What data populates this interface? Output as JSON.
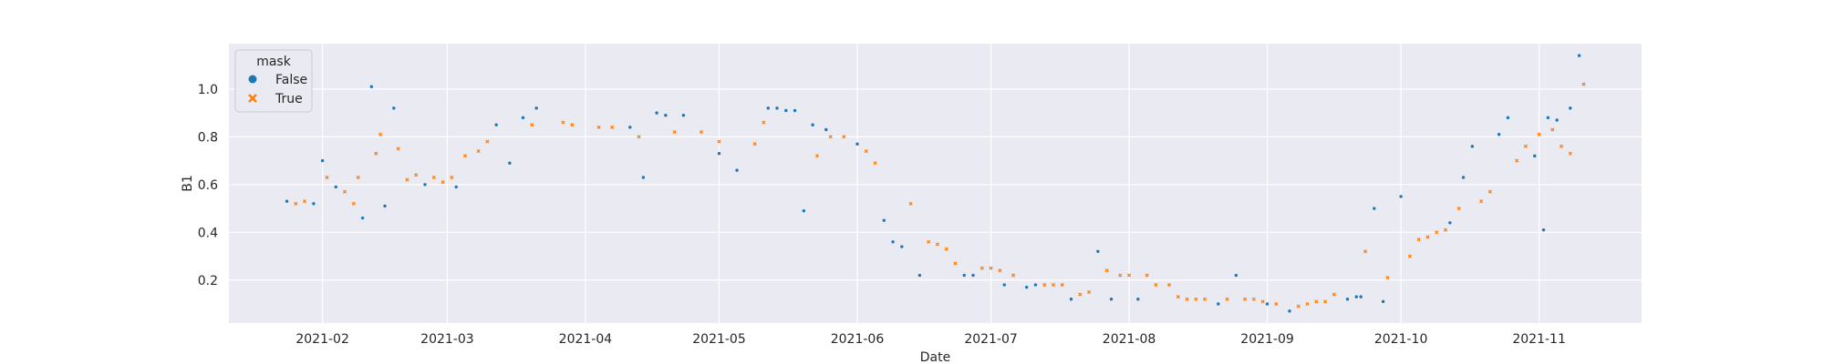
{
  "chart_data": {
    "type": "scatter",
    "title": "",
    "xlabel": "Date",
    "ylabel": "B1",
    "x_axis_type": "date",
    "xlim": [
      "2021-01-11",
      "2021-11-24"
    ],
    "ylim": [
      0.02,
      1.19
    ],
    "x_ticks": [
      "2021-02-01",
      "2021-03-01",
      "2021-04-01",
      "2021-05-01",
      "2021-06-01",
      "2021-07-01",
      "2021-08-01",
      "2021-09-01",
      "2021-10-01",
      "2021-11-01"
    ],
    "x_tick_labels": [
      "2021-02",
      "2021-03",
      "2021-04",
      "2021-05",
      "2021-06",
      "2021-07",
      "2021-08",
      "2021-09",
      "2021-10",
      "2021-11"
    ],
    "y_ticks": [
      0.2,
      0.4,
      0.6,
      0.8,
      1.0
    ],
    "y_tick_labels": [
      "0.2",
      "0.4",
      "0.6",
      "0.8",
      "1.0"
    ],
    "grid": true,
    "background": "#eaeaf2",
    "legend": {
      "title": "mask",
      "placement": "top-left",
      "entries": [
        {
          "label": "False",
          "marker": "circle",
          "color": "#1f77b4"
        },
        {
          "label": "True",
          "marker": "x",
          "color": "#ff7f0e"
        }
      ]
    },
    "series": [
      {
        "name": "False",
        "color": "#1f77b4",
        "marker": "circle",
        "x": [
          "2021-01-24",
          "2021-01-30",
          "2021-02-01",
          "2021-02-04",
          "2021-02-10",
          "2021-02-12",
          "2021-02-15",
          "2021-02-17",
          "2021-02-24",
          "2021-03-03",
          "2021-03-12",
          "2021-03-15",
          "2021-03-18",
          "2021-03-21",
          "2021-04-11",
          "2021-04-14",
          "2021-04-17",
          "2021-04-19",
          "2021-04-23",
          "2021-05-01",
          "2021-05-05",
          "2021-05-12",
          "2021-05-14",
          "2021-05-16",
          "2021-05-18",
          "2021-05-20",
          "2021-05-22",
          "2021-05-25",
          "2021-06-01",
          "2021-06-07",
          "2021-06-09",
          "2021-06-11",
          "2021-06-15",
          "2021-06-25",
          "2021-06-27",
          "2021-07-04",
          "2021-07-09",
          "2021-07-11",
          "2021-07-19",
          "2021-07-25",
          "2021-07-28",
          "2021-08-03",
          "2021-08-21",
          "2021-08-25",
          "2021-09-01",
          "2021-09-06",
          "2021-09-19",
          "2021-09-21",
          "2021-09-22",
          "2021-09-25",
          "2021-09-27",
          "2021-10-01",
          "2021-10-12",
          "2021-10-15",
          "2021-10-17",
          "2021-10-23",
          "2021-10-25",
          "2021-10-31",
          "2021-11-02",
          "2021-11-03",
          "2021-11-05",
          "2021-11-08",
          "2021-11-10"
        ],
        "y": [
          0.53,
          0.52,
          0.7,
          0.59,
          0.46,
          1.01,
          0.51,
          0.92,
          0.6,
          0.59,
          0.85,
          0.69,
          0.88,
          0.92,
          0.84,
          0.63,
          0.9,
          0.89,
          0.89,
          0.73,
          0.66,
          0.92,
          0.92,
          0.91,
          0.91,
          0.49,
          0.85,
          0.83,
          0.77,
          0.45,
          0.36,
          0.34,
          0.22,
          0.22,
          0.22,
          0.18,
          0.17,
          0.18,
          0.12,
          0.32,
          0.12,
          0.12,
          0.1,
          0.22,
          0.1,
          0.07,
          0.12,
          0.13,
          0.13,
          0.5,
          0.11,
          0.55,
          0.44,
          0.63,
          0.76,
          0.81,
          0.88,
          0.72,
          0.41,
          0.88,
          0.87,
          0.92,
          1.14
        ]
      },
      {
        "name": "True",
        "color": "#ff7f0e",
        "marker": "x",
        "x": [
          "2021-01-26",
          "2021-01-28",
          "2021-02-02",
          "2021-02-06",
          "2021-02-08",
          "2021-02-09",
          "2021-02-13",
          "2021-02-14",
          "2021-02-18",
          "2021-02-20",
          "2021-02-22",
          "2021-02-26",
          "2021-02-28",
          "2021-03-02",
          "2021-03-05",
          "2021-03-08",
          "2021-03-10",
          "2021-03-20",
          "2021-03-27",
          "2021-03-29",
          "2021-04-04",
          "2021-04-07",
          "2021-04-13",
          "2021-04-21",
          "2021-04-27",
          "2021-05-01",
          "2021-05-09",
          "2021-05-11",
          "2021-05-23",
          "2021-05-26",
          "2021-05-29",
          "2021-06-03",
          "2021-06-05",
          "2021-06-13",
          "2021-06-17",
          "2021-06-19",
          "2021-06-21",
          "2021-06-23",
          "2021-06-29",
          "2021-07-01",
          "2021-07-03",
          "2021-07-06",
          "2021-07-13",
          "2021-07-15",
          "2021-07-17",
          "2021-07-21",
          "2021-07-23",
          "2021-07-27",
          "2021-07-30",
          "2021-08-01",
          "2021-08-05",
          "2021-08-07",
          "2021-08-10",
          "2021-08-12",
          "2021-08-14",
          "2021-08-16",
          "2021-08-18",
          "2021-08-23",
          "2021-08-27",
          "2021-08-29",
          "2021-08-31",
          "2021-09-03",
          "2021-09-08",
          "2021-09-10",
          "2021-09-12",
          "2021-09-14",
          "2021-09-16",
          "2021-09-23",
          "2021-09-28",
          "2021-10-03",
          "2021-10-05",
          "2021-10-07",
          "2021-10-09",
          "2021-10-11",
          "2021-10-14",
          "2021-10-19",
          "2021-10-21",
          "2021-10-27",
          "2021-10-29",
          "2021-11-01",
          "2021-11-04",
          "2021-11-06",
          "2021-11-08",
          "2021-11-11"
        ],
        "y": [
          0.52,
          0.53,
          0.63,
          0.57,
          0.52,
          0.63,
          0.73,
          0.81,
          0.75,
          0.62,
          0.64,
          0.63,
          0.61,
          0.63,
          0.72,
          0.74,
          0.78,
          0.85,
          0.86,
          0.85,
          0.84,
          0.84,
          0.8,
          0.82,
          0.82,
          0.78,
          0.77,
          0.86,
          0.72,
          0.8,
          0.8,
          0.74,
          0.69,
          0.52,
          0.36,
          0.35,
          0.33,
          0.27,
          0.25,
          0.25,
          0.24,
          0.22,
          0.18,
          0.18,
          0.18,
          0.14,
          0.15,
          0.24,
          0.22,
          0.22,
          0.22,
          0.18,
          0.18,
          0.13,
          0.12,
          0.12,
          0.12,
          0.12,
          0.12,
          0.12,
          0.11,
          0.1,
          0.09,
          0.1,
          0.11,
          0.11,
          0.14,
          0.32,
          0.21,
          0.3,
          0.37,
          0.38,
          0.4,
          0.41,
          0.5,
          0.53,
          0.57,
          0.7,
          0.76,
          0.81,
          0.83,
          0.76,
          0.73,
          1.02
        ]
      }
    ]
  }
}
